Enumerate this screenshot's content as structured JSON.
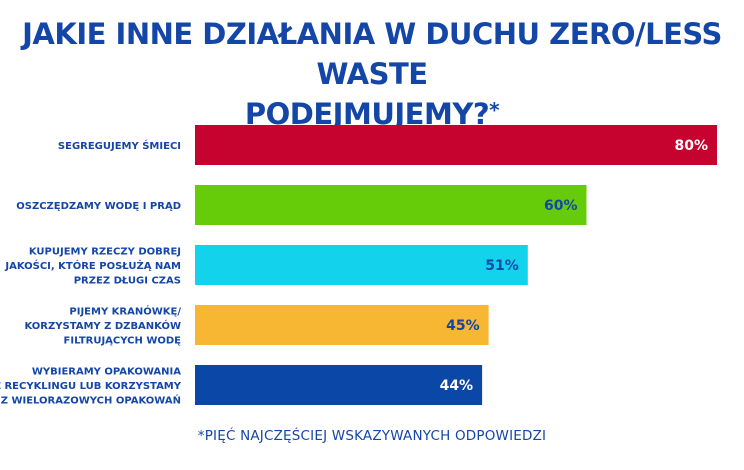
{
  "title": {
    "line1": "JAKIE INNE DZIAŁANIA W DUCHU ZERO/LESS WASTE",
    "line2": "PODEJMUJEMY?",
    "marker": "*"
  },
  "footnote": "*PIĘĆ NAJCZĘŚCIEJ WSKAZYWANYCH ODPOWIEDZI",
  "colors": {
    "title": "#1446a8",
    "label": "#1446a8",
    "value_light": "#ffffff",
    "value_dark": "#1446a8"
  },
  "chart_data": {
    "type": "bar",
    "orientation": "horizontal",
    "xlim": [
      0,
      80
    ],
    "grid": false,
    "categories": [
      [
        "SEGREGUJEMY ŚMIECI"
      ],
      [
        "OSZCZĘDZAMY WODĘ I PRĄD"
      ],
      [
        "KUPUJEMY RZECZY DOBREJ",
        "JAKOŚCI, KTÓRE POSŁUŻĄ NAM",
        "PRZEZ DŁUGI CZAS"
      ],
      [
        "PIJEMY KRANÓWKĘ/",
        "KORZYSTAMY Z DZBANKÓW",
        "FILTRUJĄCYCH WODĘ"
      ],
      [
        "WYBIERAMY OPAKOWANIA",
        "Z RECYKLINGU LUB KORZYSTAMY",
        "Z WIELORAZOWYCH OPAKOWAŃ"
      ]
    ],
    "values": [
      80,
      60,
      51,
      45,
      44
    ],
    "value_labels": [
      "80%",
      "60%",
      "51%",
      "45%",
      "44%"
    ],
    "bar_colors": [
      "#c5032e",
      "#66cc0a",
      "#12d2ec",
      "#f7b733",
      "#0b47a6"
    ],
    "value_label_colors": [
      "#ffffff",
      "#1446a8",
      "#1446a8",
      "#1446a8",
      "#ffffff"
    ]
  }
}
